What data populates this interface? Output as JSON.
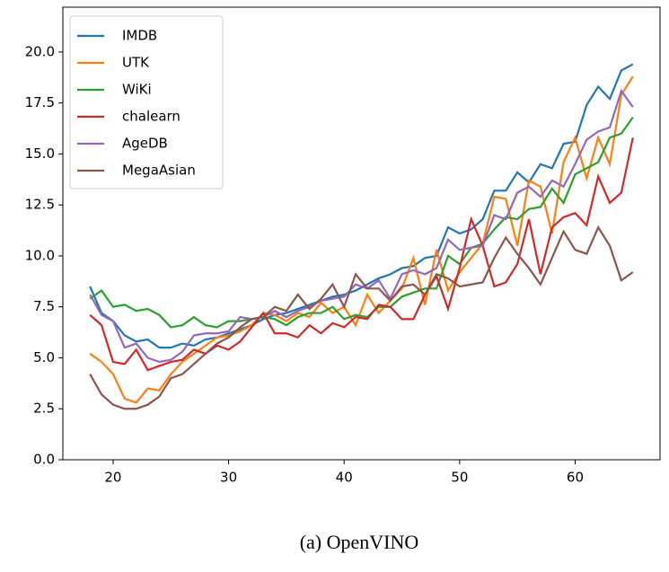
{
  "chart_data": {
    "type": "line",
    "caption": "(a) OpenVINO",
    "x": [
      18,
      19,
      20,
      21,
      22,
      23,
      24,
      25,
      26,
      27,
      28,
      29,
      30,
      31,
      32,
      33,
      34,
      35,
      36,
      37,
      38,
      39,
      40,
      41,
      42,
      43,
      44,
      45,
      46,
      47,
      48,
      49,
      50,
      51,
      52,
      53,
      54,
      55,
      56,
      57,
      58,
      59,
      60,
      61,
      62,
      63,
      64,
      65
    ],
    "series": [
      {
        "name": "IMDB",
        "color": "#1f77b4",
        "values": [
          8.5,
          7.2,
          6.8,
          6.1,
          5.8,
          5.9,
          5.5,
          5.5,
          5.7,
          5.6,
          5.9,
          6.0,
          6.2,
          6.4,
          6.6,
          6.9,
          7.1,
          7.2,
          7.4,
          7.6,
          7.8,
          8.0,
          8.1,
          8.3,
          8.6,
          8.9,
          9.1,
          9.4,
          9.5,
          9.9,
          10.0,
          11.4,
          11.1,
          11.3,
          11.8,
          13.2,
          13.2,
          14.1,
          13.6,
          14.5,
          14.3,
          15.5,
          15.6,
          17.4,
          18.3,
          17.7,
          19.1,
          19.4
        ]
      },
      {
        "name": "UTK",
        "color": "#ff7f0e",
        "values": [
          5.2,
          4.8,
          4.2,
          3.0,
          2.8,
          3.5,
          3.4,
          4.2,
          4.8,
          5.2,
          5.6,
          6.0,
          6.1,
          6.3,
          6.6,
          7.2,
          7.1,
          6.8,
          7.2,
          7.0,
          7.7,
          7.2,
          7.5,
          6.6,
          8.1,
          7.2,
          7.8,
          8.4,
          9.9,
          7.6,
          10.3,
          8.3,
          9.2,
          9.9,
          10.6,
          12.9,
          12.8,
          10.5,
          13.7,
          13.4,
          11.1,
          14.6,
          15.8,
          13.8,
          15.8,
          14.5,
          17.9,
          18.8
        ]
      },
      {
        "name": "WiKi",
        "color": "#2ca02c",
        "values": [
          7.9,
          8.3,
          7.5,
          7.6,
          7.3,
          7.4,
          7.1,
          6.5,
          6.6,
          7.0,
          6.6,
          6.5,
          6.8,
          6.8,
          6.9,
          7.0,
          6.9,
          6.6,
          7.0,
          7.2,
          7.2,
          7.5,
          6.9,
          7.1,
          7.0,
          7.5,
          7.5,
          8.0,
          8.2,
          8.4,
          8.4,
          10.0,
          9.6,
          10.4,
          10.6,
          11.3,
          11.9,
          11.8,
          12.3,
          12.4,
          13.3,
          12.6,
          14.0,
          14.3,
          14.6,
          15.8,
          16.0,
          16.8
        ]
      },
      {
        "name": "chalearn",
        "color": "#d62728",
        "values": [
          7.1,
          6.6,
          4.8,
          4.7,
          5.4,
          4.4,
          4.6,
          4.8,
          4.9,
          5.4,
          5.2,
          5.6,
          5.4,
          5.8,
          6.5,
          7.2,
          6.2,
          6.2,
          6.0,
          6.6,
          6.2,
          6.7,
          6.5,
          7.0,
          6.9,
          7.6,
          7.5,
          6.9,
          6.9,
          8.1,
          9.0,
          7.4,
          9.4,
          11.8,
          10.5,
          8.5,
          8.7,
          9.6,
          11.8,
          9.1,
          11.4,
          11.9,
          12.1,
          11.5,
          13.9,
          12.6,
          13.1,
          15.8
        ]
      },
      {
        "name": "AgeDB",
        "color": "#9467bd",
        "values": [
          8.1,
          7.1,
          6.8,
          5.5,
          5.7,
          5.0,
          4.8,
          4.9,
          5.3,
          6.1,
          6.2,
          6.2,
          6.3,
          7.0,
          6.9,
          7.0,
          7.3,
          7.0,
          7.3,
          7.5,
          7.8,
          7.9,
          8.0,
          8.6,
          8.4,
          8.8,
          7.9,
          9.1,
          9.3,
          9.1,
          9.4,
          10.8,
          10.3,
          10.4,
          10.5,
          12.0,
          11.8,
          13.1,
          13.4,
          12.9,
          13.7,
          13.4,
          14.5,
          15.7,
          16.1,
          16.3,
          18.1,
          17.3
        ]
      },
      {
        "name": "MegaAsian",
        "color": "#8c564b",
        "values": [
          4.2,
          3.2,
          2.7,
          2.5,
          2.5,
          2.7,
          3.1,
          4.0,
          4.2,
          4.7,
          5.2,
          5.7,
          6.0,
          6.5,
          6.9,
          7.0,
          7.5,
          7.3,
          8.1,
          7.4,
          7.9,
          8.6,
          7.5,
          9.1,
          8.4,
          8.4,
          7.8,
          8.5,
          8.6,
          8.1,
          9.1,
          8.9,
          8.5,
          8.6,
          8.7,
          9.9,
          10.9,
          10.1,
          9.4,
          8.6,
          9.9,
          11.2,
          10.3,
          10.1,
          11.4,
          10.5,
          8.8,
          9.2
        ]
      }
    ],
    "xlim": [
      15.65,
      67.35
    ],
    "xticks": [
      20,
      30,
      40,
      50,
      60
    ],
    "ylim": [
      0,
      22.2
    ],
    "yticks": [
      {
        "value": 0,
        "label": "0.0"
      },
      {
        "value": 2.5,
        "label": "2.5"
      },
      {
        "value": 5,
        "label": "5.0"
      },
      {
        "value": 7.5,
        "label": "7.5"
      },
      {
        "value": 10,
        "label": "10.0"
      },
      {
        "value": 12.5,
        "label": "12.5"
      },
      {
        "value": 15,
        "label": "15.0"
      },
      {
        "value": 17.5,
        "label": "17.5"
      },
      {
        "value": 20,
        "label": "20.0"
      }
    ],
    "legend": "upper left"
  }
}
